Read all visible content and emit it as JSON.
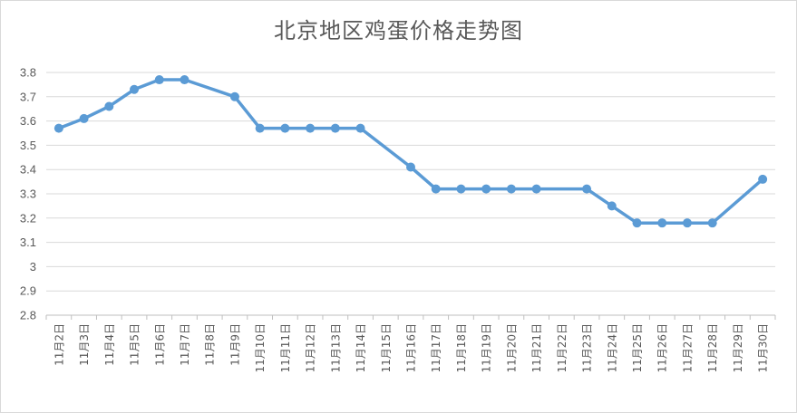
{
  "chart_data": {
    "type": "line",
    "title": "北京地区鸡蛋价格走势图",
    "xlabel": "",
    "ylabel": "",
    "ylim": [
      2.8,
      3.8
    ],
    "yticks": [
      "3.8",
      "3.7",
      "3.6",
      "3.5",
      "3.4",
      "3.3",
      "3.2",
      "3.1",
      "3",
      "2.9",
      "2.8"
    ],
    "grid": true,
    "legend": "none",
    "line_color": "#5b9bd5",
    "categories": [
      "11月2日",
      "11月3日",
      "11月4日",
      "11月5日",
      "11月6日",
      "11月7日",
      "11月8日",
      "11月9日",
      "11月10日",
      "11月11日",
      "11月12日",
      "11月13日",
      "11月14日",
      "11月15日",
      "11月16日",
      "11月17日",
      "11月18日",
      "11月19日",
      "11月20日",
      "11月21日",
      "11月22日",
      "11月23日",
      "11月24日",
      "11月25日",
      "11月26日",
      "11月27日",
      "11月28日",
      "11月29日",
      "11月30日"
    ],
    "series": [
      {
        "values": [
          3.57,
          3.61,
          3.66,
          3.73,
          3.77,
          3.77,
          null,
          3.7,
          3.57,
          3.57,
          3.57,
          3.57,
          3.57,
          null,
          3.41,
          3.32,
          3.32,
          3.32,
          3.32,
          3.32,
          null,
          3.32,
          3.25,
          3.18,
          3.18,
          3.18,
          3.18,
          null,
          3.36
        ]
      }
    ]
  }
}
